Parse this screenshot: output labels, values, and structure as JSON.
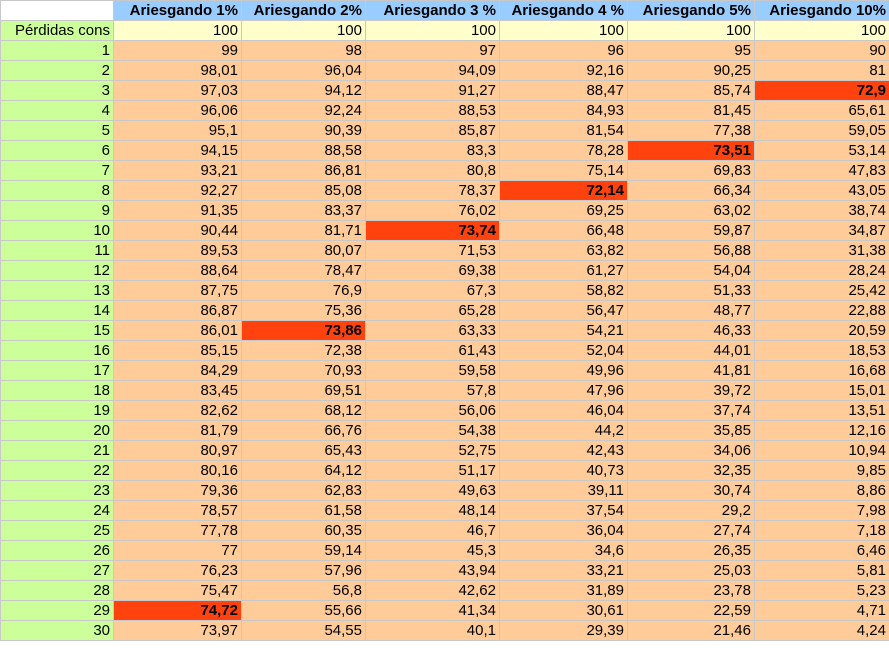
{
  "sheet": {
    "headers": [
      "Ariesgando 1%",
      "Ariesgando 2%",
      "Ariesgando 3 %",
      "Ariesgando 4 %",
      "Ariesgando 5%",
      "Ariesgando 10%"
    ],
    "initial_row": {
      "label": "Pérdidas cons",
      "values": [
        "100",
        "100",
        "100",
        "100",
        "100",
        "100"
      ]
    },
    "rows": [
      {
        "label": "1",
        "values": [
          "99",
          "98",
          "97",
          "96",
          "95",
          "90"
        ]
      },
      {
        "label": "2",
        "values": [
          "98,01",
          "96,04",
          "94,09",
          "92,16",
          "90,25",
          "81"
        ]
      },
      {
        "label": "3",
        "values": [
          "97,03",
          "94,12",
          "91,27",
          "88,47",
          "85,74",
          "72,9"
        ]
      },
      {
        "label": "4",
        "values": [
          "96,06",
          "92,24",
          "88,53",
          "84,93",
          "81,45",
          "65,61"
        ]
      },
      {
        "label": "5",
        "values": [
          "95,1",
          "90,39",
          "85,87",
          "81,54",
          "77,38",
          "59,05"
        ]
      },
      {
        "label": "6",
        "values": [
          "94,15",
          "88,58",
          "83,3",
          "78,28",
          "73,51",
          "53,14"
        ]
      },
      {
        "label": "7",
        "values": [
          "93,21",
          "86,81",
          "80,8",
          "75,14",
          "69,83",
          "47,83"
        ]
      },
      {
        "label": "8",
        "values": [
          "92,27",
          "85,08",
          "78,37",
          "72,14",
          "66,34",
          "43,05"
        ]
      },
      {
        "label": "9",
        "values": [
          "91,35",
          "83,37",
          "76,02",
          "69,25",
          "63,02",
          "38,74"
        ]
      },
      {
        "label": "10",
        "values": [
          "90,44",
          "81,71",
          "73,74",
          "66,48",
          "59,87",
          "34,87"
        ]
      },
      {
        "label": "11",
        "values": [
          "89,53",
          "80,07",
          "71,53",
          "63,82",
          "56,88",
          "31,38"
        ]
      },
      {
        "label": "12",
        "values": [
          "88,64",
          "78,47",
          "69,38",
          "61,27",
          "54,04",
          "28,24"
        ]
      },
      {
        "label": "13",
        "values": [
          "87,75",
          "76,9",
          "67,3",
          "58,82",
          "51,33",
          "25,42"
        ]
      },
      {
        "label": "14",
        "values": [
          "86,87",
          "75,36",
          "65,28",
          "56,47",
          "48,77",
          "22,88"
        ]
      },
      {
        "label": "15",
        "values": [
          "86,01",
          "73,86",
          "63,33",
          "54,21",
          "46,33",
          "20,59"
        ]
      },
      {
        "label": "16",
        "values": [
          "85,15",
          "72,38",
          "61,43",
          "52,04",
          "44,01",
          "18,53"
        ]
      },
      {
        "label": "17",
        "values": [
          "84,29",
          "70,93",
          "59,58",
          "49,96",
          "41,81",
          "16,68"
        ]
      },
      {
        "label": "18",
        "values": [
          "83,45",
          "69,51",
          "57,8",
          "47,96",
          "39,72",
          "15,01"
        ]
      },
      {
        "label": "19",
        "values": [
          "82,62",
          "68,12",
          "56,06",
          "46,04",
          "37,74",
          "13,51"
        ]
      },
      {
        "label": "20",
        "values": [
          "81,79",
          "66,76",
          "54,38",
          "44,2",
          "35,85",
          "12,16"
        ]
      },
      {
        "label": "21",
        "values": [
          "80,97",
          "65,43",
          "52,75",
          "42,43",
          "34,06",
          "10,94"
        ]
      },
      {
        "label": "22",
        "values": [
          "80,16",
          "64,12",
          "51,17",
          "40,73",
          "32,35",
          "9,85"
        ]
      },
      {
        "label": "23",
        "values": [
          "79,36",
          "62,83",
          "49,63",
          "39,11",
          "30,74",
          "8,86"
        ]
      },
      {
        "label": "24",
        "values": [
          "78,57",
          "61,58",
          "48,14",
          "37,54",
          "29,2",
          "7,98"
        ]
      },
      {
        "label": "25",
        "values": [
          "77,78",
          "60,35",
          "46,7",
          "36,04",
          "27,74",
          "7,18"
        ]
      },
      {
        "label": "26",
        "values": [
          "77",
          "59,14",
          "45,3",
          "34,6",
          "26,35",
          "6,46"
        ]
      },
      {
        "label": "27",
        "values": [
          "76,23",
          "57,96",
          "43,94",
          "33,21",
          "25,03",
          "5,81"
        ]
      },
      {
        "label": "28",
        "values": [
          "75,47",
          "56,8",
          "42,62",
          "31,89",
          "23,78",
          "5,23"
        ]
      },
      {
        "label": "29",
        "values": [
          "74,72",
          "55,66",
          "41,34",
          "30,61",
          "22,59",
          "4,71"
        ]
      },
      {
        "label": "30",
        "values": [
          "73,97",
          "54,55",
          "40,1",
          "29,39",
          "21,46",
          "4,24"
        ]
      }
    ],
    "highlights": [
      {
        "row": 29,
        "col": 0
      },
      {
        "row": 15,
        "col": 1
      },
      {
        "row": 10,
        "col": 2
      },
      {
        "row": 8,
        "col": 3
      },
      {
        "row": 6,
        "col": 4
      },
      {
        "row": 3,
        "col": 5
      }
    ],
    "colors": {
      "header_bg": "#99ccff",
      "row_label_bg": "#ccff99",
      "initial_row_bg": "#ffffcc",
      "data_bg": "#ffcc99",
      "highlight_bg": "#ff420e"
    }
  }
}
